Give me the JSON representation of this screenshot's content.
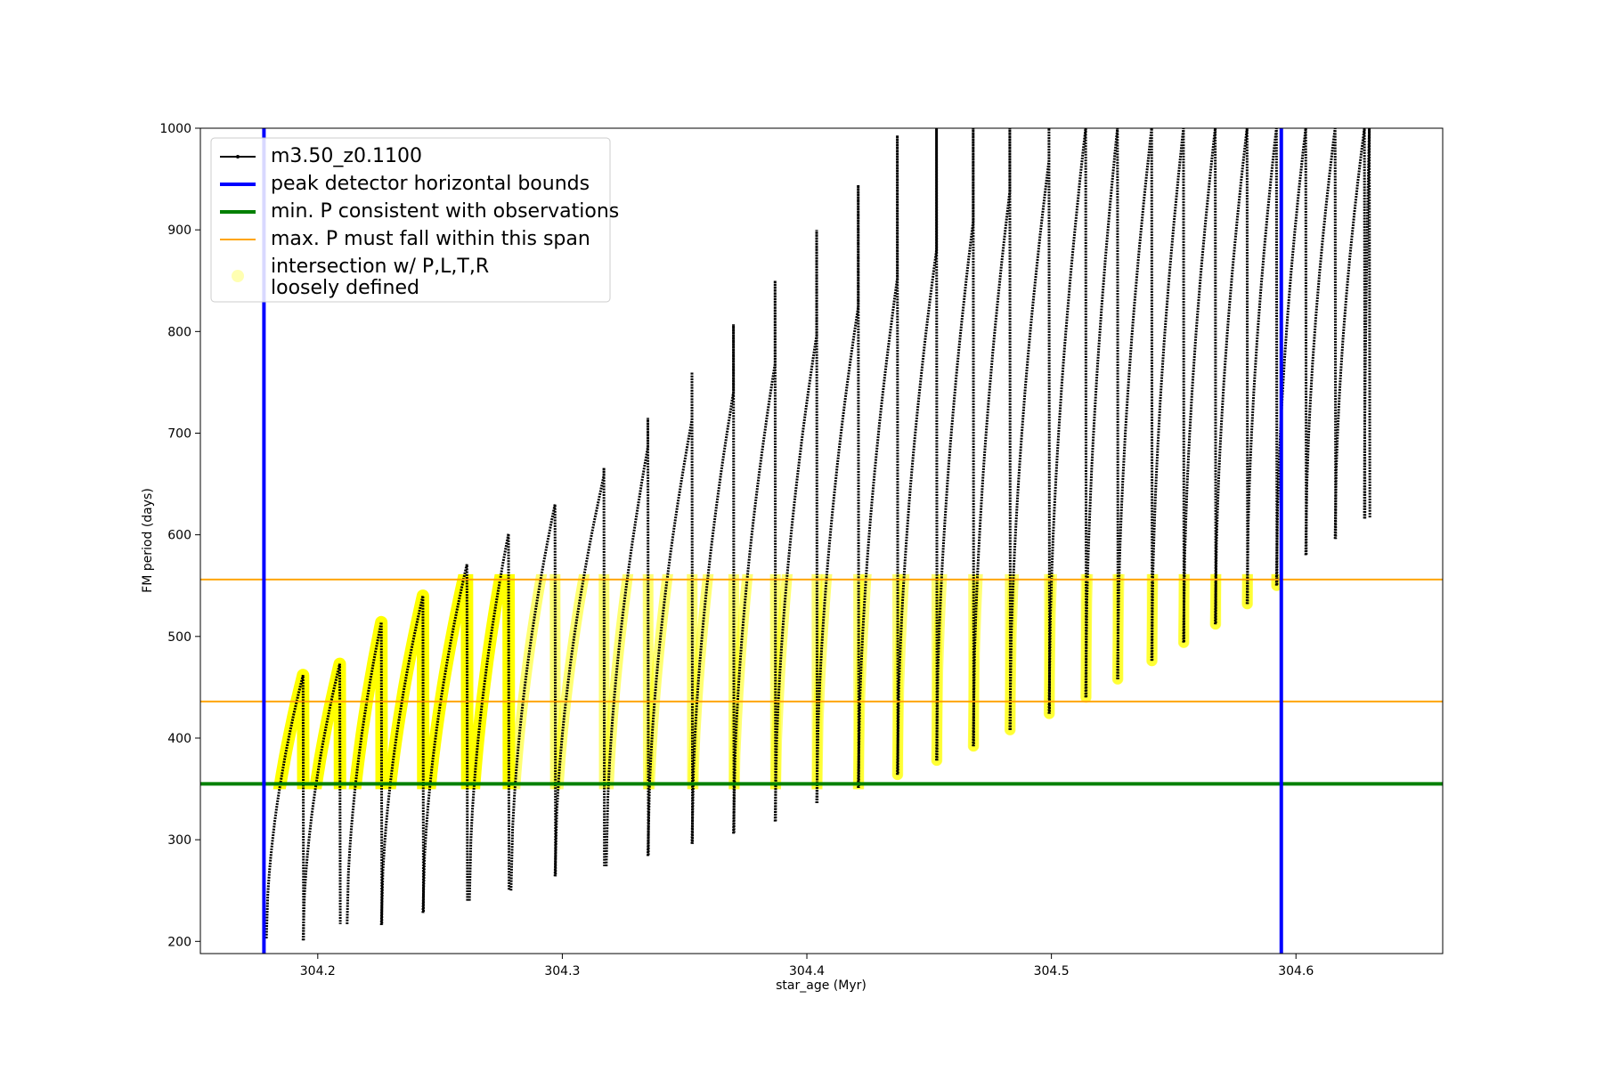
{
  "chart_data": {
    "type": "line",
    "xlabel": "star_age (Myr)",
    "ylabel": "FM period (days)",
    "xlim": [
      304.152,
      304.66
    ],
    "ylim": [
      188,
      1000
    ],
    "xticks": [
      304.2,
      304.3,
      304.4,
      304.5,
      304.6
    ],
    "xtick_labels": [
      "304.2",
      "304.3",
      "304.4",
      "304.5",
      "304.6"
    ],
    "yticks": [
      200,
      300,
      400,
      500,
      600,
      700,
      800,
      900,
      1000
    ],
    "ytick_labels": [
      "200",
      "300",
      "400",
      "500",
      "600",
      "700",
      "800",
      "900",
      "1000"
    ],
    "grid": false,
    "legend_position": "upper-left",
    "legend": [
      {
        "label": "m3.50_z0.1100",
        "kind": "line-marker",
        "color": "#000000"
      },
      {
        "label": "peak detector horizontal bounds",
        "kind": "line",
        "color": "#0000ff"
      },
      {
        "label": "min. P consistent with observations",
        "kind": "line",
        "color": "#008000"
      },
      {
        "label": "max. P must fall within this span",
        "kind": "line",
        "color": "#ffa500"
      },
      {
        "label": "intersection w/ P,L,T,R",
        "label_line2": "loosely defined",
        "kind": "dot",
        "color": "#ffff00"
      }
    ],
    "vertical_lines": {
      "color": "#0000ff",
      "x": [
        304.178,
        304.594
      ]
    },
    "horizontal_lines": [
      {
        "y": 355,
        "color": "#008000",
        "role": "min"
      },
      {
        "y": 436,
        "color": "#ffa500",
        "role": "max-low"
      },
      {
        "y": 556,
        "color": "#ffa500",
        "role": "max-high"
      }
    ],
    "series": [
      {
        "name": "m3.50_z0.1100",
        "color": "#000000",
        "cycles": [
          {
            "start": 304.179,
            "end": 304.194,
            "min": 203,
            "max": 462,
            "spike": 462
          },
          {
            "start": 304.194,
            "end": 304.209,
            "min": 201,
            "max": 473,
            "spike": 473
          },
          {
            "start": 304.212,
            "end": 304.226,
            "min": 217,
            "max": 514,
            "spike": 514
          },
          {
            "start": 304.226,
            "end": 304.243,
            "min": 216,
            "max": 540,
            "spike": 540
          },
          {
            "start": 304.243,
            "end": 304.261,
            "min": 228,
            "max": 571,
            "spike": 571
          },
          {
            "start": 304.262,
            "end": 304.278,
            "min": 240,
            "max": 601,
            "spike": 601
          },
          {
            "start": 304.279,
            "end": 304.297,
            "min": 250,
            "max": 630,
            "spike": 630
          },
          {
            "start": 304.297,
            "end": 304.317,
            "min": 264,
            "max": 658,
            "spike": 666
          },
          {
            "start": 304.318,
            "end": 304.335,
            "min": 274,
            "max": 686,
            "spike": 715
          },
          {
            "start": 304.335,
            "end": 304.353,
            "min": 284,
            "max": 713,
            "spike": 760
          },
          {
            "start": 304.353,
            "end": 304.37,
            "min": 296,
            "max": 740,
            "spike": 807
          },
          {
            "start": 304.37,
            "end": 304.387,
            "min": 306,
            "max": 768,
            "spike": 850
          },
          {
            "start": 304.387,
            "end": 304.404,
            "min": 318,
            "max": 796,
            "spike": 900
          },
          {
            "start": 304.404,
            "end": 304.421,
            "min": 336,
            "max": 824,
            "spike": 944
          },
          {
            "start": 304.421,
            "end": 304.437,
            "min": 351,
            "max": 852,
            "spike": 993
          },
          {
            "start": 304.437,
            "end": 304.453,
            "min": 364,
            "max": 880,
            "spike": 1000
          },
          {
            "start": 304.453,
            "end": 304.468,
            "min": 378,
            "max": 908,
            "spike": 1000
          },
          {
            "start": 304.468,
            "end": 304.483,
            "min": 392,
            "max": 938,
            "spike": 1000
          },
          {
            "start": 304.483,
            "end": 304.499,
            "min": 408,
            "max": 968,
            "spike": 1000
          },
          {
            "start": 304.499,
            "end": 304.514,
            "min": 424,
            "max": 1000,
            "spike": 1000
          },
          {
            "start": 304.514,
            "end": 304.527,
            "min": 440,
            "max": 1000,
            "spike": 1000
          },
          {
            "start": 304.527,
            "end": 304.541,
            "min": 458,
            "max": 1000,
            "spike": 1000
          },
          {
            "start": 304.541,
            "end": 304.554,
            "min": 476,
            "max": 1000,
            "spike": 1000
          },
          {
            "start": 304.554,
            "end": 304.567,
            "min": 494,
            "max": 1000,
            "spike": 1000
          },
          {
            "start": 304.567,
            "end": 304.58,
            "min": 512,
            "max": 1000,
            "spike": 1000
          },
          {
            "start": 304.58,
            "end": 304.592,
            "min": 532,
            "max": 1000,
            "spike": 1000
          },
          {
            "start": 304.592,
            "end": 304.604,
            "min": 550,
            "max": 1000,
            "spike": 1000
          },
          {
            "start": 304.604,
            "end": 304.616,
            "min": 580,
            "max": 1000,
            "spike": 1000
          },
          {
            "start": 304.616,
            "end": 304.628,
            "min": 596,
            "max": 1000,
            "spike": 1000
          },
          {
            "start": 304.628,
            "end": 304.63,
            "min": 616,
            "max": 1000,
            "spike": 1000
          }
        ]
      },
      {
        "name": "intersection w/ P,L,T,R loosely defined",
        "color": "#ffff00",
        "rule": "points of the model track with 355 <= P <= 556 between the blue bounds"
      }
    ]
  }
}
